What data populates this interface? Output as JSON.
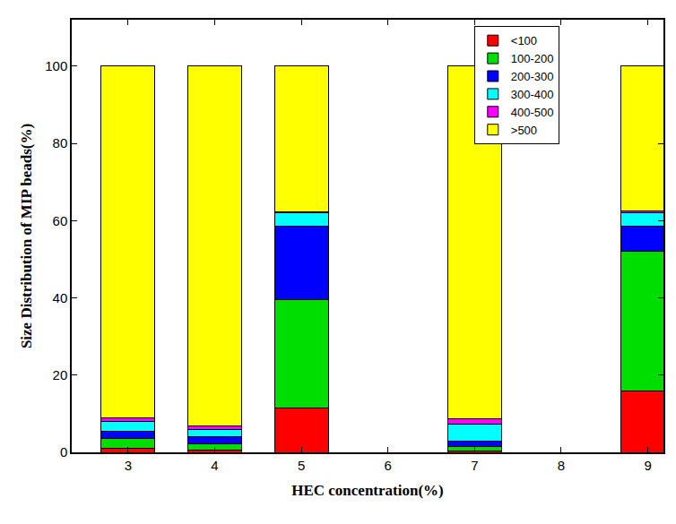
{
  "chart_data": {
    "type": "bar",
    "stacked": true,
    "x_label": "HEC concentration(%)",
    "y_label": "Size Distribution of MIP beads(%)",
    "x": [
      3,
      4,
      5,
      7,
      9
    ],
    "series": [
      {
        "name": "<100",
        "color": "#ff0000",
        "values": [
          1,
          0.5,
          11.5,
          0.3,
          16
        ]
      },
      {
        "name": "100-200",
        "color": "#00dd00",
        "values": [
          2.5,
          1.8,
          28,
          1.2,
          36
        ]
      },
      {
        "name": "200-300",
        "color": "#0000ff",
        "values": [
          2,
          1.7,
          19,
          1.5,
          6.5
        ]
      },
      {
        "name": "300-400",
        "color": "#00ffff",
        "values": [
          2.5,
          2,
          3.5,
          4.3,
          3.5
        ]
      },
      {
        "name": "400-500",
        "color": "#ff00ff",
        "values": [
          1,
          0.8,
          0.3,
          1.5,
          0.5
        ]
      },
      {
        "name": ">500",
        "color": "#ffff00",
        "values": [
          91,
          93.2,
          37.7,
          91.2,
          37.5
        ]
      }
    ],
    "xlim": [
      2.35,
      9.18
    ],
    "xticks": [
      3,
      4,
      5,
      6,
      7,
      8,
      9
    ],
    "ylim": [
      0,
      112
    ],
    "yticks": [
      0,
      20,
      40,
      60,
      80,
      100
    ],
    "grid": false,
    "legend": "upper right"
  }
}
